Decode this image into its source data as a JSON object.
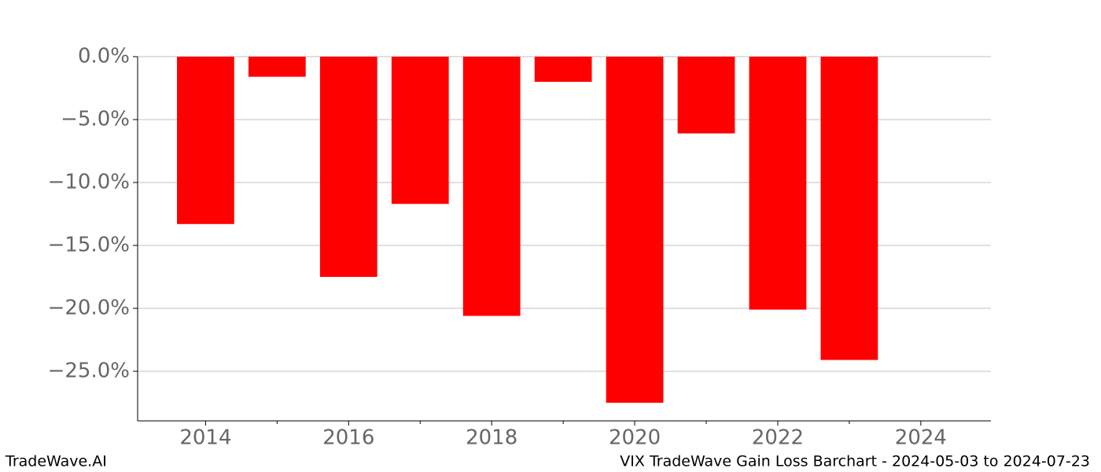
{
  "chart_data": {
    "type": "bar",
    "x": [
      2014,
      2015,
      2016,
      2017,
      2018,
      2019,
      2020,
      2021,
      2022,
      2023
    ],
    "values": [
      -13.3,
      -1.6,
      -17.5,
      -11.7,
      -20.6,
      -2.0,
      -27.5,
      -6.1,
      -20.1,
      -24.1
    ],
    "color": "#ff0000",
    "xlim": [
      2013.05,
      2024.98
    ],
    "xticks": [
      2014,
      2016,
      2018,
      2020,
      2022,
      2024
    ],
    "xminorticks": [
      2015,
      2017,
      2019,
      2021,
      2023
    ],
    "ylim": [
      -28.94,
      0
    ],
    "yticks": [
      {
        "value": 0,
        "label": "0.0%"
      },
      {
        "value": -5,
        "label": "−5.0%"
      },
      {
        "value": -10,
        "label": "−10.0%"
      },
      {
        "value": -15,
        "label": "−15.0%"
      },
      {
        "value": -20,
        "label": "−20.0%"
      },
      {
        "value": -25,
        "label": "−25.0%"
      }
    ],
    "grid": true
  },
  "footer": {
    "left": "TradeWave.AI",
    "right": "VIX TradeWave Gain Loss Barchart - 2024-05-03 to 2024-07-23"
  }
}
